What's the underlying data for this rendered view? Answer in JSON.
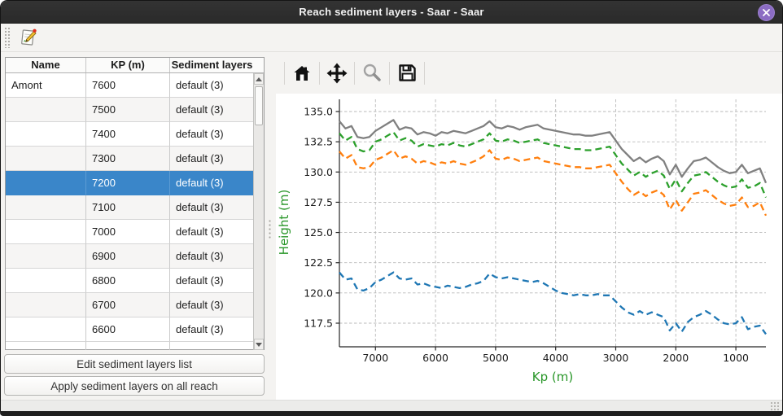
{
  "window": {
    "title": "Reach sediment layers - Saar - Saar"
  },
  "icons": {
    "close": "x-circle-icon",
    "edit": "edit-sediment-list-icon",
    "home": "home-icon",
    "pan": "move-arrows-icon",
    "zoom": "magnifier-icon",
    "save": "floppy-disk-icon"
  },
  "table": {
    "headers": [
      "Name",
      "KP (m)",
      "Sediment layers"
    ],
    "selected_index": 4,
    "rows": [
      {
        "name": "Amont",
        "kp": "7600",
        "layers": "default (3)"
      },
      {
        "name": "",
        "kp": "7500",
        "layers": "default (3)"
      },
      {
        "name": "",
        "kp": "7400",
        "layers": "default (3)"
      },
      {
        "name": "",
        "kp": "7300",
        "layers": "default (3)"
      },
      {
        "name": "",
        "kp": "7200",
        "layers": "default (3)"
      },
      {
        "name": "",
        "kp": "7100",
        "layers": "default (3)"
      },
      {
        "name": "",
        "kp": "7000",
        "layers": "default (3)"
      },
      {
        "name": "",
        "kp": "6900",
        "layers": "default (3)"
      },
      {
        "name": "",
        "kp": "6800",
        "layers": "default (3)"
      },
      {
        "name": "",
        "kp": "6700",
        "layers": "default (3)"
      },
      {
        "name": "",
        "kp": "6600",
        "layers": "default (3)"
      }
    ]
  },
  "buttons": {
    "edit_label": "Edit sediment layers list",
    "apply_label": "Apply sediment layers on all reach"
  },
  "chart_data": {
    "type": "line",
    "xlabel": "Kp (m)",
    "ylabel": "Height (m)",
    "label_color": "#289628",
    "grid": true,
    "x_inverted": true,
    "xlim": [
      7600,
      500
    ],
    "ylim": [
      115.5,
      136.0
    ],
    "x_ticks": [
      7000,
      6000,
      5000,
      4000,
      3000,
      2000,
      1000
    ],
    "y_ticks": [
      135.0,
      132.5,
      130.0,
      127.5,
      125.0,
      122.5,
      120.0,
      117.5
    ],
    "x": [
      7600,
      7500,
      7400,
      7300,
      7200,
      7100,
      7000,
      6900,
      6800,
      6700,
      6600,
      6500,
      6400,
      6300,
      6200,
      6100,
      6000,
      5900,
      5800,
      5700,
      5600,
      5500,
      5400,
      5300,
      5200,
      5100,
      5000,
      4900,
      4800,
      4700,
      4600,
      4500,
      4400,
      4300,
      4200,
      4100,
      4000,
      3900,
      3800,
      3700,
      3600,
      3500,
      3400,
      3300,
      3200,
      3100,
      3000,
      2900,
      2800,
      2700,
      2600,
      2500,
      2400,
      2300,
      2200,
      2100,
      2000,
      1900,
      1800,
      1700,
      1600,
      1500,
      1400,
      1300,
      1200,
      1100,
      1000,
      900,
      800,
      700,
      600,
      500
    ],
    "series": [
      {
        "name": "blue-dashed-line",
        "color": "#1f77b4",
        "style": "dashed",
        "values": [
          121.7,
          121.1,
          121.2,
          120.3,
          120.2,
          120.4,
          120.9,
          121.1,
          121.4,
          121.7,
          121.2,
          121.1,
          121.2,
          120.7,
          120.8,
          120.6,
          120.5,
          120.4,
          120.6,
          120.5,
          120.4,
          120.5,
          120.7,
          120.8,
          121.0,
          121.6,
          121.3,
          121.2,
          121.3,
          121.2,
          121.1,
          121.0,
          120.9,
          121.0,
          120.8,
          120.5,
          120.2,
          120.0,
          119.9,
          119.8,
          119.9,
          119.8,
          119.8,
          119.9,
          119.8,
          119.8,
          119.3,
          118.8,
          118.4,
          118.2,
          118.5,
          118.2,
          118.4,
          118.2,
          118.0,
          116.9,
          117.5,
          116.8,
          117.6,
          118.0,
          118.2,
          118.5,
          118.2,
          117.8,
          117.5,
          117.4,
          117.5,
          118.0,
          117.0,
          117.2,
          117.3,
          116.6
        ]
      },
      {
        "name": "orange-dashed-line",
        "color": "#ff7f0e",
        "style": "dashed",
        "values": [
          131.7,
          131.1,
          131.4,
          130.4,
          130.3,
          130.4,
          131.0,
          131.2,
          131.5,
          131.8,
          131.1,
          131.3,
          131.1,
          130.7,
          130.9,
          130.8,
          130.6,
          130.8,
          130.7,
          130.9,
          130.7,
          130.6,
          130.8,
          131.0,
          131.3,
          131.8,
          131.1,
          131.0,
          131.2,
          131.1,
          130.9,
          131.0,
          131.1,
          131.2,
          130.9,
          130.8,
          130.7,
          130.6,
          130.5,
          130.4,
          130.4,
          130.3,
          130.3,
          130.4,
          130.5,
          130.6,
          129.9,
          129.2,
          128.6,
          128.1,
          128.4,
          128.0,
          128.3,
          128.5,
          128.1,
          126.9,
          127.7,
          126.8,
          127.5,
          128.2,
          128.3,
          128.5,
          128.1,
          127.7,
          127.4,
          127.2,
          127.3,
          127.9,
          127.1,
          127.2,
          127.5,
          126.4
        ]
      },
      {
        "name": "green-dashed-line",
        "color": "#2ca02c",
        "style": "dashed",
        "values": [
          133.2,
          132.6,
          132.9,
          131.9,
          131.7,
          131.8,
          132.5,
          132.7,
          133.0,
          133.3,
          132.6,
          132.8,
          132.6,
          132.1,
          132.3,
          132.2,
          132.1,
          132.3,
          132.2,
          132.4,
          132.2,
          132.1,
          132.3,
          132.5,
          132.7,
          133.2,
          132.6,
          132.5,
          132.7,
          132.6,
          132.4,
          132.5,
          132.6,
          132.7,
          132.4,
          132.3,
          132.2,
          132.1,
          132.0,
          131.9,
          131.9,
          131.8,
          131.8,
          131.9,
          132.0,
          132.1,
          131.4,
          130.7,
          130.2,
          129.7,
          130.0,
          129.6,
          129.9,
          130.1,
          129.7,
          128.6,
          129.4,
          128.4,
          129.1,
          129.7,
          129.8,
          130.0,
          129.6,
          129.2,
          128.9,
          128.7,
          128.8,
          129.4,
          128.7,
          128.8,
          129.1,
          127.9
        ]
      },
      {
        "name": "gray-solid-line",
        "color": "#808080",
        "style": "solid",
        "values": [
          134.2,
          133.6,
          133.8,
          132.9,
          132.8,
          132.9,
          133.4,
          133.7,
          134.0,
          134.3,
          133.5,
          133.7,
          133.6,
          133.1,
          133.3,
          133.2,
          133.0,
          133.3,
          133.2,
          133.4,
          133.3,
          133.2,
          133.4,
          133.6,
          133.8,
          134.2,
          133.7,
          133.6,
          133.8,
          133.7,
          133.5,
          133.7,
          133.8,
          133.9,
          133.6,
          133.5,
          133.4,
          133.3,
          133.2,
          133.1,
          133.1,
          133.0,
          133.0,
          133.1,
          133.2,
          133.3,
          132.6,
          131.9,
          131.4,
          130.9,
          131.2,
          130.8,
          131.1,
          131.3,
          130.9,
          129.8,
          130.6,
          129.6,
          130.3,
          130.9,
          131.0,
          131.2,
          130.8,
          130.4,
          130.1,
          129.9,
          130.0,
          130.6,
          129.9,
          130.1,
          130.3,
          129.1
        ]
      }
    ]
  }
}
